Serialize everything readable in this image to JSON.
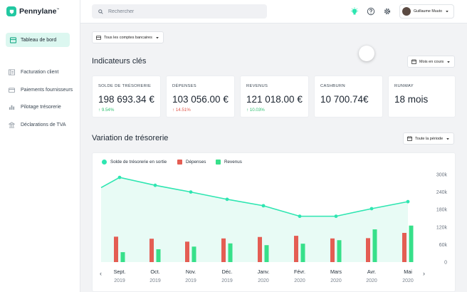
{
  "app": {
    "name": "Pennylane",
    "trademark": "™"
  },
  "sidebar": {
    "items": [
      {
        "label": "Tableau de bord",
        "icon": "dashboard-icon",
        "active": true
      },
      {
        "label": "Facturation client",
        "icon": "invoice-icon"
      },
      {
        "label": "Paiements fournisseurs",
        "icon": "card-icon"
      },
      {
        "label": "Pilotage trésorerie",
        "icon": "bars-chart-icon"
      },
      {
        "label": "Déclarations de TVA",
        "icon": "building-icon"
      }
    ]
  },
  "topbar": {
    "search_placeholder": "Rechercher",
    "user_name": "Guillaume Muuto"
  },
  "filters": {
    "accounts": "Tous les comptes bancaires",
    "period_kpi": "Mois en cours",
    "period_chart": "Toute la période"
  },
  "kpis": {
    "title": "Indicateurs clés",
    "cards": [
      {
        "label": "Solde de trésorerie",
        "value": "198 693.34 €",
        "delta": "9.54%",
        "arrow": "↑",
        "color": "#2fbf71"
      },
      {
        "label": "Dépenses",
        "value": "103 056.00 €",
        "delta": "14.51%",
        "arrow": "↑",
        "color": "#e0564b"
      },
      {
        "label": "Revenus",
        "value": "121 018.00 €",
        "delta": "10.03%",
        "arrow": "↑",
        "color": "#2fbf71"
      },
      {
        "label": "Cashburn",
        "value": "10 700.74€",
        "delta": "",
        "arrow": "",
        "color": ""
      },
      {
        "label": "Runway",
        "value": "18 mois",
        "delta": "",
        "arrow": "",
        "color": ""
      }
    ]
  },
  "chart_section": {
    "title": "Variation de trésorerie"
  },
  "chart_data": {
    "type": "bar",
    "categories": [
      "Sept.",
      "Oct.",
      "Nov.",
      "Déc.",
      "Janv.",
      "Févr.",
      "Mars",
      "Avr.",
      "Mai"
    ],
    "years": [
      "2019",
      "2019",
      "2019",
      "2019",
      "2020",
      "2020",
      "2020",
      "2020",
      "2020"
    ],
    "yticks": [
      "300k",
      "240k",
      "180k",
      "120k",
      "60k",
      "0"
    ],
    "ylim": [
      0,
      300000
    ],
    "series": [
      {
        "name": "Solde de trésorerie en sortie",
        "kind": "line",
        "color": "#2ee6b1",
        "values": [
          290000,
          263000,
          240000,
          215000,
          193000,
          157000,
          157000,
          183000,
          207000
        ],
        "start_value": 255000
      },
      {
        "name": "Dépenses",
        "kind": "bar",
        "color": "#e45d53",
        "values": [
          87000,
          80000,
          70000,
          81000,
          86000,
          90000,
          81000,
          82000,
          100000
        ]
      },
      {
        "name": "Revenus",
        "kind": "bar",
        "color": "#37e08a",
        "values": [
          34000,
          44000,
          53000,
          64000,
          58000,
          63000,
          75000,
          112000,
          125000
        ]
      }
    ],
    "legend": "top-left",
    "grid": false
  }
}
